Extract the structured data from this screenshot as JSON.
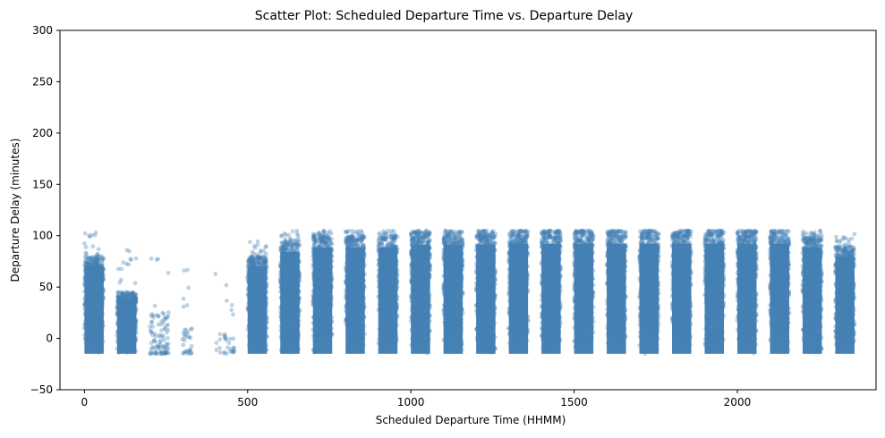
{
  "chart_data": {
    "type": "scatter",
    "title": "Scatter Plot: Scheduled Departure Time vs. Departure Delay",
    "xlabel": "Scheduled Departure Time (HHMM)",
    "ylabel": "Departure Delay (minutes)",
    "xlim": [
      -75,
      2425
    ],
    "ylim": [
      -50,
      300
    ],
    "xticks": [
      0,
      500,
      1000,
      1500,
      2000
    ],
    "yticks": [
      -50,
      0,
      50,
      100,
      150,
      200,
      250,
      300
    ],
    "grid": false,
    "point_color": "#4682b4",
    "point_alpha": 0.35,
    "series": [
      {
        "clusters": [
          {
            "x_range": [
              0,
              59
            ],
            "y_range": [
              -15,
              80
            ],
            "density": "dense",
            "outliers_max_y": 104
          },
          {
            "x_range": [
              100,
              159
            ],
            "y_range": [
              -15,
              45
            ],
            "density": "dense",
            "outliers_max_y": 87
          },
          {
            "x_range": [
              200,
              259
            ],
            "y_range": [
              -15,
              25
            ],
            "density": "medium",
            "outliers_max_y": 91
          },
          {
            "x_range": [
              300,
              330
            ],
            "y_range": [
              -15,
              10
            ],
            "density": "sparse",
            "outliers_max_y": 67
          },
          {
            "x_range": [
              400,
              459
            ],
            "y_range": [
              -15,
              5
            ],
            "density": "sparse",
            "outliers_max_y": 72
          },
          {
            "x_range": [
              500,
              559
            ],
            "y_range": [
              -15,
              80
            ],
            "density": "dense",
            "outliers_max_y": 95
          },
          {
            "x_range": [
              600,
              659
            ],
            "y_range": [
              -15,
              95
            ],
            "density": "dense",
            "outliers_max_y": 105
          },
          {
            "x_range": [
              700,
              759
            ],
            "y_range": [
              -15,
              100
            ],
            "density": "dense",
            "outliers_max_y": 105
          },
          {
            "x_range": [
              800,
              859
            ],
            "y_range": [
              -15,
              100
            ],
            "density": "dense",
            "outliers_max_y": 105
          },
          {
            "x_range": [
              900,
              959
            ],
            "y_range": [
              -15,
              100
            ],
            "density": "dense",
            "outliers_max_y": 105
          },
          {
            "x_range": [
              1000,
              1059
            ],
            "y_range": [
              -15,
              103
            ],
            "density": "dense",
            "outliers_max_y": 105
          },
          {
            "x_range": [
              1100,
              1159
            ],
            "y_range": [
              -15,
              103
            ],
            "density": "dense",
            "outliers_max_y": 105
          },
          {
            "x_range": [
              1200,
              1259
            ],
            "y_range": [
              -15,
              103
            ],
            "density": "dense",
            "outliers_max_y": 105
          },
          {
            "x_range": [
              1300,
              1359
            ],
            "y_range": [
              -15,
              104
            ],
            "density": "dense",
            "outliers_max_y": 105
          },
          {
            "x_range": [
              1400,
              1459
            ],
            "y_range": [
              -15,
              104
            ],
            "density": "dense",
            "outliers_max_y": 105
          },
          {
            "x_range": [
              1500,
              1559
            ],
            "y_range": [
              -15,
              104
            ],
            "density": "dense",
            "outliers_max_y": 105
          },
          {
            "x_range": [
              1600,
              1659
            ],
            "y_range": [
              -15,
              104
            ],
            "density": "dense",
            "outliers_max_y": 105
          },
          {
            "x_range": [
              1700,
              1759
            ],
            "y_range": [
              -15,
              104
            ],
            "density": "dense",
            "outliers_max_y": 105
          },
          {
            "x_range": [
              1800,
              1859
            ],
            "y_range": [
              -15,
              104
            ],
            "density": "dense",
            "outliers_max_y": 105
          },
          {
            "x_range": [
              1900,
              1959
            ],
            "y_range": [
              -15,
              104
            ],
            "density": "dense",
            "outliers_max_y": 105
          },
          {
            "x_range": [
              2000,
              2059
            ],
            "y_range": [
              -15,
              104
            ],
            "density": "dense",
            "outliers_max_y": 105
          },
          {
            "x_range": [
              2100,
              2159
            ],
            "y_range": [
              -15,
              104
            ],
            "density": "dense",
            "outliers_max_y": 105
          },
          {
            "x_range": [
              2200,
              2259
            ],
            "y_range": [
              -15,
              100
            ],
            "density": "dense",
            "outliers_max_y": 105
          },
          {
            "x_range": [
              2300,
              2359
            ],
            "y_range": [
              -15,
              90
            ],
            "density": "dense",
            "outliers_max_y": 102
          }
        ]
      }
    ]
  }
}
